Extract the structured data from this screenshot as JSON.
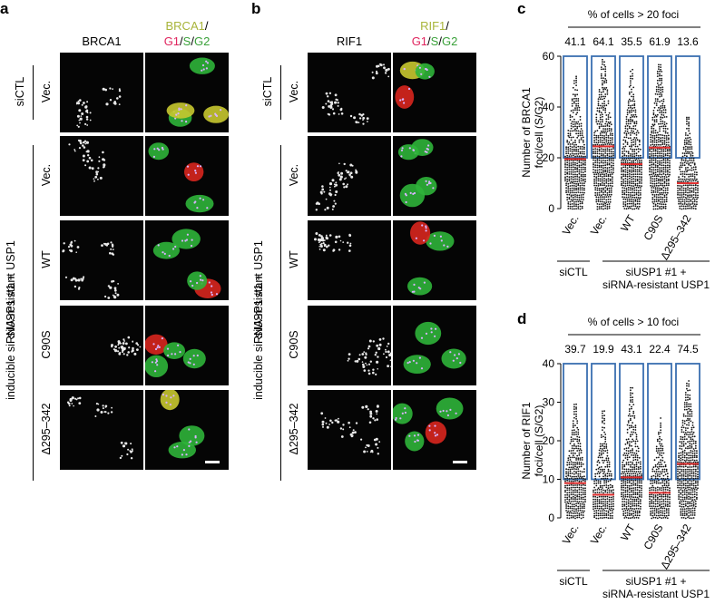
{
  "panel_labels": {
    "a": "a",
    "b": "b",
    "c": "c",
    "d": "d"
  },
  "panel_a": {
    "col1_header": "BRCA1",
    "col2_header": {
      "top": "BRCA1",
      "slash": "/",
      "g1": "G1",
      "sep1": "/",
      "s": "S",
      "sep2": "/",
      "g2": "G2"
    },
    "side_group_top": "siCTL",
    "side_group_bottom_line1": "siUSP1 #1 +",
    "side_group_bottom_line2": "inducible siRNA-resistant USP1",
    "rows": [
      "Vec.",
      "Vec.",
      "WT",
      "C90S",
      "Δ295–342"
    ]
  },
  "panel_b": {
    "col1_header": "RIF1",
    "col2_header": {
      "top": "RIF1",
      "slash": "/",
      "g1": "G1",
      "sep1": "/",
      "s": "S",
      "sep2": "/",
      "g2": "G2"
    },
    "side_group_top": "siCTL",
    "side_group_bottom_line1": "siUSP1 #1 +",
    "side_group_bottom_line2": "inducible siRNA-resistant USP1",
    "rows": [
      "Vec.",
      "Vec.",
      "WT",
      "C90S",
      "Δ295–342"
    ]
  },
  "colors": {
    "box": "#3a6fb0",
    "median": "#e03030",
    "brca1": "#a8b43a",
    "g1": "#e0245e",
    "s": "#3aa13a",
    "g2": "#3aa13a"
  },
  "chart_data": [
    {
      "type": "scatter",
      "subtype": "dot-plot",
      "panel": "c",
      "title": "% of cells > 20 foci",
      "ylabel_line1": "Number of BRCA1",
      "ylabel_line2": "foci/cell (S/G2)",
      "ylim": [
        0,
        60
      ],
      "yticks": [
        "0",
        "20",
        "40",
        "60"
      ],
      "categories": [
        "Vec.",
        "Vec.",
        "WT",
        "C90S",
        "Δ295–342"
      ],
      "percentages": [
        "41.1",
        "64.1",
        "35.5",
        "61.9",
        "13.6"
      ],
      "medians": [
        19.5,
        24.5,
        17.5,
        24,
        10
      ],
      "maxima": [
        53,
        59,
        55,
        57,
        36
      ],
      "threshold": 20,
      "group_left": "siCTL",
      "group_right_line1": "siUSP1 #1 +",
      "group_right_line2": "siRNA-resistant USP1"
    },
    {
      "type": "scatter",
      "subtype": "dot-plot",
      "panel": "d",
      "title": "% of cells > 10 foci",
      "ylabel_line1": "Number of RIF1",
      "ylabel_line2": "foci/cell (S/G2)",
      "ylim": [
        0,
        40
      ],
      "yticks": [
        "0",
        "10",
        "20",
        "30",
        "40"
      ],
      "categories": [
        "Vec.",
        "Vec.",
        "WT",
        "C90S",
        "Δ295–342"
      ],
      "percentages": [
        "39.7",
        "19.9",
        "43.1",
        "22.4",
        "74.5"
      ],
      "medians": [
        9,
        6,
        10.5,
        6.5,
        14
      ],
      "maxima": [
        30,
        28,
        34,
        26,
        36
      ],
      "threshold": 10,
      "group_left": "siCTL",
      "group_right_line1": "siUSP1 #1 +",
      "group_right_line2": "siRNA-resistant USP1"
    }
  ]
}
